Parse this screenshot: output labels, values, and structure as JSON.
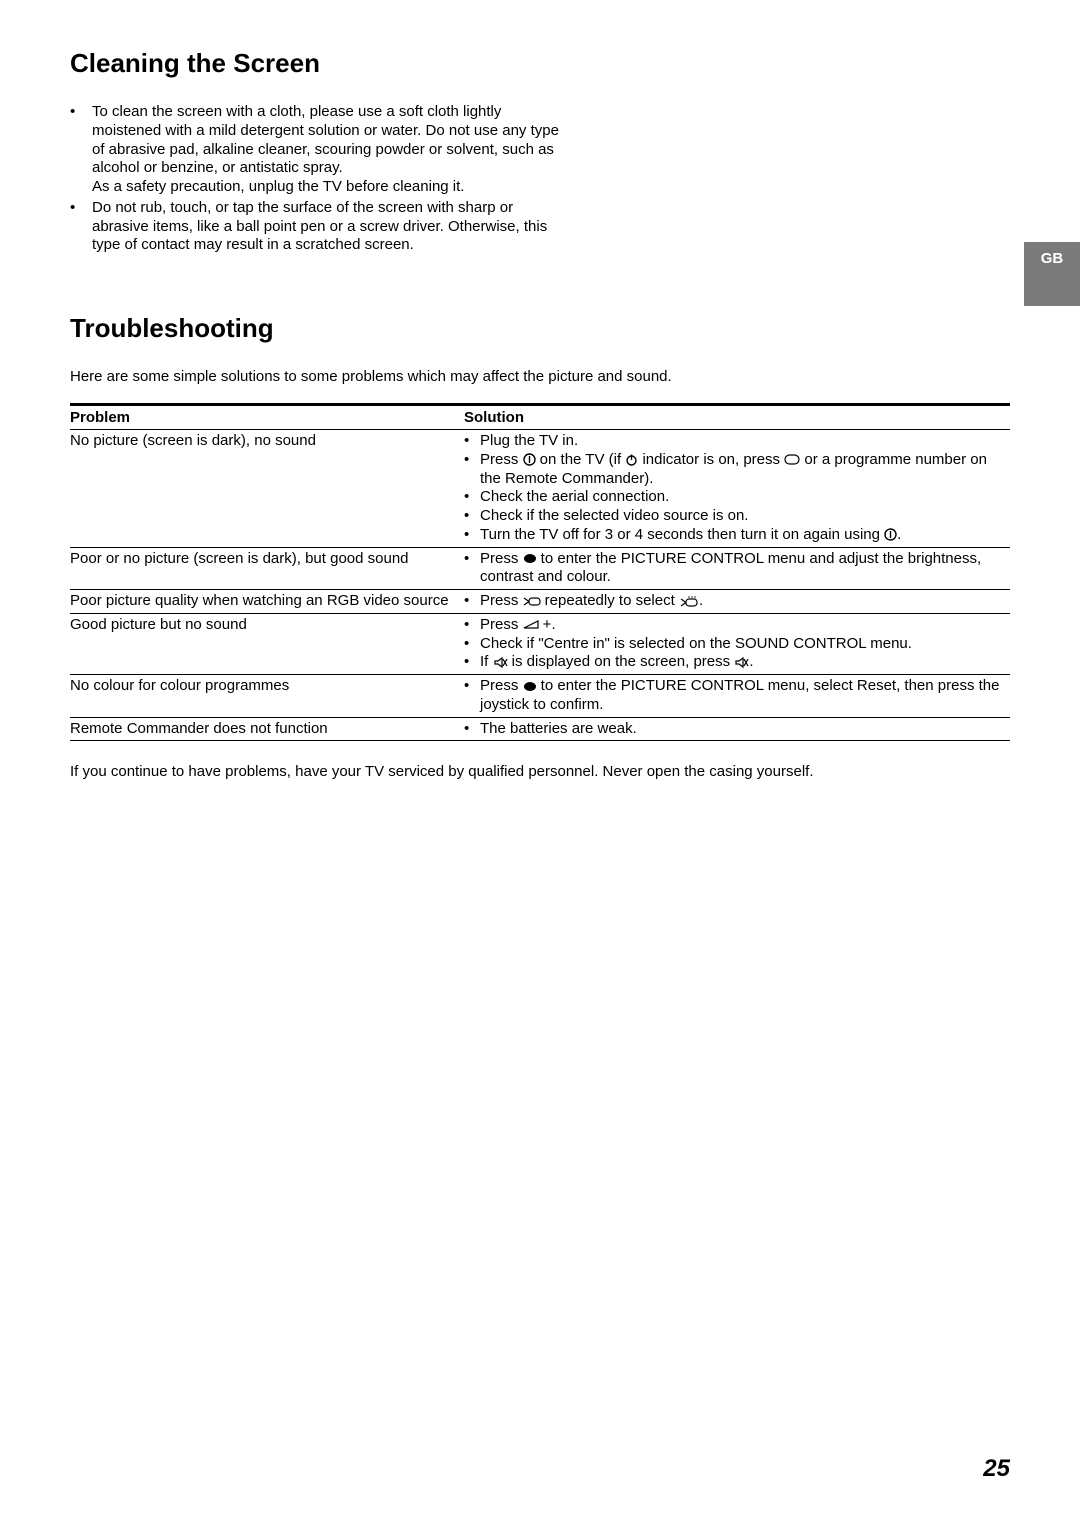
{
  "cleaning": {
    "heading": "Cleaning the Screen",
    "items": [
      {
        "text": "To clean the screen with a cloth, please use a soft cloth lightly moistened with a mild detergent solution or water. Do not use any type of abrasive pad, alkaline cleaner, scouring powder or solvent, such as alcohol or benzine, or antistatic spray.",
        "sub": "As a safety precaution, unplug the TV before cleaning it."
      },
      {
        "text": "Do not rub, touch, or tap the surface of the screen with sharp or abrasive items, like a ball point pen or a screw driver.  Otherwise, this type of contact may result in a scratched screen."
      }
    ]
  },
  "troubleshooting": {
    "heading": "Troubleshooting",
    "intro": "Here are some simple solutions to some problems which may affect the picture and sound.",
    "columns": {
      "problem": "Problem",
      "solution": "Solution"
    },
    "rows": [
      {
        "problem": "No picture (screen is dark), no sound",
        "solution_html": "<li>Plug the TV in.</li><li>Press <svg class='icon' width='13' height='13'><circle cx='6.5' cy='6.5' r='5.5' fill='none' stroke='#000' stroke-width='1.4'/><line x1='6.5' y1='3' x2='6.5' y2='10' stroke='#000' stroke-width='1.4'/></svg> on the TV (if <svg class='icon' width='13' height='13'><circle cx='6.5' cy='7.5' r='4.5' fill='none' stroke='#000' stroke-width='1.4'/><line x1='6.5' y1='1.5' x2='6.5' y2='7' stroke='#000' stroke-width='1.4'/></svg> indicator is on, press <svg class='icon' width='16' height='11'><rect x='1' y='1' width='14' height='9' rx='4.5' fill='none' stroke='#000' stroke-width='1.2'/></svg> or a programme number on the Remote Commander).</li><li>Check the aerial connection.</li><li>Check if the selected video source is on.</li><li>Turn the TV off for 3 or 4 seconds then turn it on again using <svg class='icon' width='13' height='13'><circle cx='6.5' cy='6.5' r='5.5' fill='none' stroke='#000' stroke-width='1.4'/><line x1='6.5' y1='3' x2='6.5' y2='10' stroke='#000' stroke-width='1.4'/></svg>.</li>"
      },
      {
        "problem": "Poor or no picture (screen is dark), but good sound",
        "solution_html": "<li>Press <svg class='icon' width='14' height='11'><ellipse cx='7' cy='5.5' rx='6' ry='4.5' fill='#000'/></svg> to enter the PICTURE CONTROL menu and adjust the brightness, contrast and colour.</li>"
      },
      {
        "problem": "Poor picture quality when watching an RGB video source",
        "solution_html": "<li>Press <svg class='icon' width='18' height='12'><rect x='6' y='3' width='11' height='7' rx='3' fill='none' stroke='#000' stroke-width='1.2'/><path d='M6 6.5 L1 3 M6 6.5 L1 10' stroke='#000' stroke-width='1.2' fill='none'/></svg> repeatedly to select <svg class='icon' width='20' height='13'><rect x='7' y='4' width='11' height='7' rx='3' fill='none' stroke='#000' stroke-width='1.2'/><path d='M7 7.5 L2 4 M7 7.5 L2 11' stroke='#000' stroke-width='1.2' fill='none'/><circle cx='10' cy='2' r='0.7' fill='#000'/><circle cx='13' cy='2' r='0.7' fill='#000'/><circle cx='16' cy='2' r='0.7' fill='#000'/></svg>.</li>"
      },
      {
        "problem": "Good picture but no sound",
        "solution_html": "<li>Press <svg class='icon' width='16' height='10'><path d='M1 8 L15 1 L15 8 Z' fill='none' stroke='#000' stroke-width='1.2'/></svg> +.</li><li>Check if \"Centre in\" is selected on the SOUND CONTROL menu.</li><li>If <svg class='icon' width='15' height='13'><path d='M2 5 L5 5 L9 2 L9 11 L5 8 L2 8 Z' fill='none' stroke='#000' stroke-width='1.2'/><line x1='10' y1='3' x2='14' y2='10' stroke='#000' stroke-width='1.2'/><line x1='14' y1='3' x2='10' y2='10' stroke='#000' stroke-width='1.2'/></svg> is displayed on the screen, press <svg class='icon' width='15' height='13'><path d='M2 5 L5 5 L9 2 L9 11 L5 8 L2 8 Z' fill='none' stroke='#000' stroke-width='1.2'/><line x1='10' y1='3' x2='14' y2='10' stroke='#000' stroke-width='1.2'/><line x1='14' y1='3' x2='10' y2='10' stroke='#000' stroke-width='1.2'/></svg>.</li>"
      },
      {
        "problem": "No colour for colour programmes",
        "solution_html": "<li>Press <svg class='icon' width='14' height='11'><ellipse cx='7' cy='5.5' rx='6' ry='4.5' fill='#000'/></svg> to enter the PICTURE CONTROL menu, select Reset, then press the joystick to confirm.</li>"
      },
      {
        "problem": "Remote Commander does not function",
        "solution_html": "<li>The batteries are weak.</li>"
      }
    ],
    "footnote": "If you continue to have problems, have your TV serviced by qualified personnel.  Never open the casing yourself."
  },
  "tab": "GB",
  "page_number": "25"
}
